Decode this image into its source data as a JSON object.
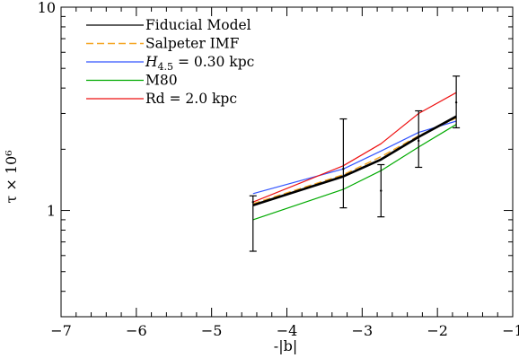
{
  "chart_data": {
    "type": "line",
    "xlabel": "-|b|",
    "ylabel": "τ × 10⁶",
    "xlim": [
      -7,
      -1
    ],
    "ylim": [
      0.3,
      10
    ],
    "yscale": "log",
    "grid": false,
    "legend_position": "top-left",
    "x_ticks": [
      -7,
      -6,
      -5,
      -4,
      -3,
      -2,
      -1
    ],
    "x_tick_labels": [
      "−7",
      "−6",
      "−5",
      "−4",
      "−3",
      "−2",
      "−1"
    ],
    "y_ticks": [
      1,
      10
    ],
    "y_tick_labels": [
      "1",
      "10"
    ],
    "x": [
      -4.45,
      -3.25,
      -2.75,
      -2.25,
      -1.75
    ],
    "series": [
      {
        "name": "Fiducial Model",
        "color": "#000000",
        "values": [
          1.06,
          1.47,
          1.78,
          2.3,
          2.9
        ]
      },
      {
        "name": "Salpeter IMF",
        "color": "#f5a623",
        "dashed": true,
        "values": [
          1.08,
          1.5,
          1.84,
          2.33,
          2.85
        ]
      },
      {
        "name": "H4.5 = 0.30 kpc",
        "color": "#3355ff",
        "values": [
          1.21,
          1.6,
          1.96,
          2.42,
          2.75
        ]
      },
      {
        "name": "M80",
        "color": "#00aa00",
        "values": [
          0.9,
          1.27,
          1.57,
          2.05,
          2.65
        ]
      },
      {
        "name": "Rd = 2.0 kpc",
        "color": "#ee1111",
        "values": [
          1.1,
          1.66,
          2.13,
          3.0,
          3.8
        ]
      }
    ],
    "observations": {
      "x": [
        -4.45,
        -3.25,
        -2.75,
        -2.25,
        -1.75
      ],
      "y": [
        1.1,
        1.6,
        1.25,
        2.2,
        3.4
      ],
      "y_low": [
        0.63,
        1.03,
        0.93,
        1.63,
        2.55
      ],
      "y_high": [
        1.18,
        2.82,
        1.68,
        3.09,
        4.58
      ]
    }
  }
}
